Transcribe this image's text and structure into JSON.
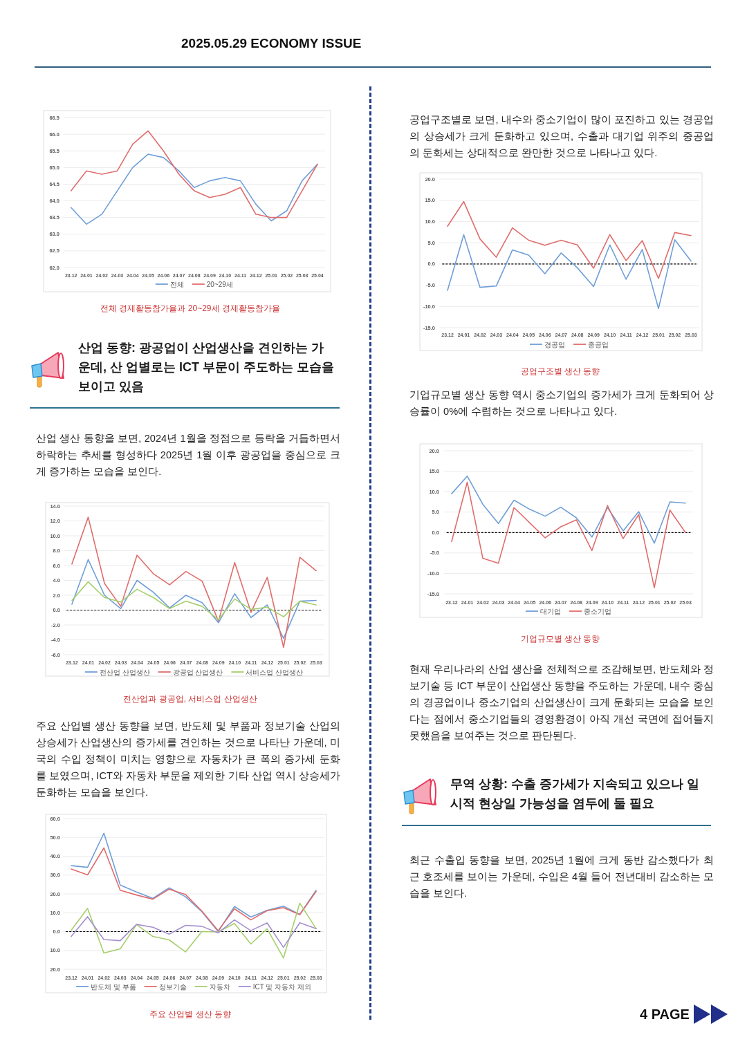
{
  "chart_data": [
    {
      "type": "other",
      "title": "2025.05.29 ECONOMY ISSUE"
    },
    {
      "type": "line",
      "categories": [
        "23.12",
        "24.01",
        "24.02",
        "24.03",
        "24.04",
        "24.05",
        "24.06",
        "24.07",
        "24.08",
        "24.09",
        "24.10",
        "24.11",
        "24.12",
        "25.01",
        "25.02",
        "25.03",
        "25.04"
      ],
      "series": [
        {
          "name": "전체",
          "color": "#6f9fd8",
          "values": [
            63.8,
            63.3,
            63.6,
            64.3,
            65.0,
            65.4,
            65.3,
            64.9,
            64.4,
            64.6,
            64.7,
            64.6,
            63.9,
            63.4,
            63.7,
            64.6,
            65.1
          ]
        },
        {
          "name": "20~29세",
          "color": "#e06c6c",
          "values": [
            64.3,
            64.9,
            64.8,
            64.9,
            65.7,
            66.1,
            65.5,
            64.8,
            64.3,
            64.1,
            64.2,
            64.4,
            63.6,
            63.5,
            63.5,
            64.3,
            65.1
          ]
        }
      ],
      "ylim": [
        62,
        66.5
      ],
      "yticks": [
        {
          "value": 62,
          "label": "62.0"
        },
        {
          "value": 62.5,
          "label": "62.5"
        },
        {
          "value": 63,
          "label": "63.0"
        },
        {
          "value": 63.5,
          "label": "63.5"
        },
        {
          "value": 64,
          "label": "64.0"
        },
        {
          "value": 64.5,
          "label": "64.5"
        },
        {
          "value": 65,
          "label": "65.0"
        },
        {
          "value": 65.5,
          "label": "65.5"
        },
        {
          "value": 66,
          "label": "66.0"
        },
        {
          "value": 66.5,
          "label": "66.5"
        }
      ],
      "grid": "y",
      "legend": "bottom",
      "annotations": [
        "전체 경제활동참가율과 20~29세 경제활동참가율"
      ]
    },
    {
      "type": "other",
      "title": "산업 동향: 광공업이 산업생산을 견인하는 가운데, 산 업별로는 ICT 부문이 주도하는 모습을 보이고 있음",
      "annotations": [
        "산업 생산 동향을 보면, 2024년 1월을 정점으로 등락을 거듭하면서 하락하는 추세를 형성하다 2025년 1월 이후 광공업을 중심으로 크게 증가하는 모습을 보인다."
      ]
    },
    {
      "type": "line",
      "categories": [
        "23.12",
        "24.01",
        "24.02",
        "24.03",
        "24.04",
        "24.05",
        "24.06",
        "24.07",
        "24.08",
        "24.09",
        "24.10",
        "24.11",
        "24.12",
        "25.01",
        "25.02",
        "25.03"
      ],
      "series": [
        {
          "name": "전산업 산업생산",
          "color": "#6f9fd8",
          "values": [
            0.8,
            6.8,
            2.0,
            0.2,
            4.0,
            2.4,
            0.3,
            2.0,
            1.0,
            -1.7,
            2.2,
            -1.0,
            0.7,
            -3.8,
            1.2,
            1.3
          ]
        },
        {
          "name": "광공업 산업생산",
          "color": "#e06c6c",
          "values": [
            6.2,
            12.5,
            3.6,
            0.5,
            7.4,
            4.9,
            3.4,
            5.2,
            3.9,
            -1.5,
            6.4,
            -0.3,
            4.4,
            -5.0,
            7.1,
            5.3
          ]
        },
        {
          "name": "서비스업 산업생산",
          "color": "#a5cf6a",
          "values": [
            1.3,
            3.8,
            1.7,
            1.1,
            2.8,
            1.7,
            0.2,
            1.2,
            0.5,
            -1.3,
            1.5,
            0.1,
            0.4,
            -0.9,
            1.2,
            0.7
          ]
        }
      ],
      "ylim": [
        -6,
        14
      ],
      "yticks": [
        {
          "value": -6,
          "label": "-6.0"
        },
        {
          "value": -4,
          "label": "-4.0"
        },
        {
          "value": -2,
          "label": "-2.0"
        },
        {
          "value": 0,
          "label": "0.0"
        },
        {
          "value": 2,
          "label": "2.0"
        },
        {
          "value": 4,
          "label": "4.0"
        },
        {
          "value": 6,
          "label": "6.0"
        },
        {
          "value": 8,
          "label": "8.0"
        },
        {
          "value": 10,
          "label": "10.0"
        },
        {
          "value": 12,
          "label": "12.0"
        },
        {
          "value": 14,
          "label": "14.0"
        }
      ],
      "grid": "y",
      "legend": "bottom",
      "ref_lines": [
        {
          "axis": "y",
          "value": 0,
          "color": "#000000",
          "line_style": "dashed"
        }
      ],
      "annotations": [
        "전산업과 광공업, 서비스업 산업생산"
      ]
    },
    {
      "type": "other",
      "annotations": [
        "주요 산업별 생산 동향을 보면, 반도체 및 부품과 정보기술 산업의 상승세가 산업생산의 증가세를 견인하는 것으로 나타난 가운데, 미국의 수입 정책이 미치는 영향으로 자동차가 큰 폭의 증가세 둔화를 보였으며, ICT와 자동차 부문을 제외한 기타 산업 역시 상승세가 둔화하는 모습을 보인다."
      ]
    },
    {
      "type": "line",
      "categories": [
        "23.12",
        "24.01",
        "24.02",
        "24.03",
        "24.04",
        "24.05",
        "24.06",
        "24.07",
        "24.08",
        "24.09",
        "24.10",
        "24.11",
        "24.12",
        "25.01",
        "25.02",
        "25.03"
      ],
      "series": [
        {
          "name": "반도체 및 부품",
          "color": "#6f9fd8",
          "values": [
            35.0,
            34.1,
            52.2,
            24.7,
            21.0,
            17.6,
            23.2,
            18.5,
            10.6,
            0.0,
            13.3,
            7.7,
            11.3,
            13.5,
            9.1,
            21.9
          ]
        },
        {
          "name": "정보기술",
          "color": "#e06c6c",
          "values": [
            33.2,
            30.1,
            44.4,
            21.9,
            19.4,
            17.2,
            22.5,
            19.7,
            10.9,
            0.5,
            12.1,
            6.2,
            11.1,
            12.7,
            9.0,
            21.3
          ]
        },
        {
          "name": "자동차",
          "color": "#a5cf6a",
          "values": [
            0.7,
            12.3,
            -11.4,
            -9.2,
            3.7,
            -2.6,
            -4.4,
            -10.8,
            0.0,
            -0.2,
            4.3,
            -6.6,
            1.4,
            -14.0,
            15.1,
            1.6
          ]
        },
        {
          "name": "ICT 및 자동차 제외",
          "color": "#a58fd0",
          "values": [
            -2.6,
            7.9,
            -4.2,
            -4.8,
            3.8,
            2.3,
            -1.4,
            3.3,
            2.8,
            -0.7,
            6.2,
            0.5,
            4.6,
            -8.4,
            4.7,
            1.6
          ]
        }
      ],
      "ylim": [
        -20,
        60
      ],
      "yticks": [
        {
          "value": -20,
          "label": "20.0"
        },
        {
          "value": -10,
          "label": "10.0"
        },
        {
          "value": 0,
          "label": "0.0"
        },
        {
          "value": 10,
          "label": "10.0"
        },
        {
          "value": 20,
          "label": "20.0"
        },
        {
          "value": 30,
          "label": "30.0"
        },
        {
          "value": 40,
          "label": "40.0"
        },
        {
          "value": 50,
          "label": "50.0"
        },
        {
          "value": 60,
          "label": "60.0"
        }
      ],
      "grid": "y",
      "legend": "bottom",
      "ref_lines": [
        {
          "axis": "y",
          "value": 0,
          "color": "#000000",
          "line_style": "dashed"
        }
      ],
      "annotations": [
        "주요 산업별 생산 동향"
      ]
    },
    {
      "type": "other",
      "annotations": [
        "공업구조별로 보면, 내수와 중소기업이 많이 포진하고 있는 경공업의 상승세가 크게 둔화하고 있으며, 수출과 대기업 위주의 중공업의 둔화세는 상대적으로 완만한 것으로 나타나고 있다."
      ]
    },
    {
      "type": "line",
      "categories": [
        "23.12",
        "24.01",
        "24.02",
        "24.03",
        "24.04",
        "24.05",
        "24.06",
        "24.07",
        "24.08",
        "24.09",
        "24.10",
        "24.11",
        "24.12",
        "25.01",
        "25.02",
        "25.03"
      ],
      "series": [
        {
          "name": "경공업",
          "color": "#6f9fd8",
          "values": [
            -6.2,
            6.9,
            -5.5,
            -5.2,
            3.3,
            2.1,
            -2.3,
            2.6,
            -0.9,
            -5.3,
            4.5,
            -3.6,
            3.4,
            -10.5,
            5.7,
            0.7
          ]
        },
        {
          "name": "중공업",
          "color": "#e06c6c",
          "values": [
            8.9,
            14.7,
            5.9,
            1.6,
            8.5,
            5.6,
            4.4,
            5.6,
            4.5,
            -1.0,
            6.9,
            0.8,
            5.5,
            -3.4,
            7.4,
            6.7
          ]
        }
      ],
      "ylim": [
        -15,
        20
      ],
      "yticks": [
        {
          "value": -15,
          "label": "-15.0"
        },
        {
          "value": -10,
          "label": "-10.0"
        },
        {
          "value": -5,
          "label": "-5.0"
        },
        {
          "value": 0,
          "label": "0.0"
        },
        {
          "value": 5,
          "label": "5.0"
        },
        {
          "value": 10,
          "label": "10.0"
        },
        {
          "value": 15,
          "label": "15.0"
        },
        {
          "value": 20,
          "label": "20.0"
        }
      ],
      "grid": "y",
      "legend": "bottom",
      "ref_lines": [
        {
          "axis": "y",
          "value": 0,
          "color": "#000000",
          "line_style": "dashed"
        }
      ],
      "annotations": [
        "공업구조별 생산 동향"
      ]
    },
    {
      "type": "other",
      "annotations": [
        "기업규모별 생산 동향 역시 중소기업의 증가세가 크게 둔화되어 상승률이 0%에 수렴하는 것으로 나타나고 있다."
      ]
    },
    {
      "type": "line",
      "categories": [
        "23.12",
        "24.01",
        "24.02",
        "24.03",
        "24.04",
        "24.05",
        "24.06",
        "24.07",
        "24.08",
        "24.09",
        "24.10",
        "24.11",
        "24.12",
        "25.01",
        "25.02",
        "25.03"
      ],
      "series": [
        {
          "name": "대기업",
          "color": "#6f9fd8",
          "values": [
            9.5,
            13.8,
            6.9,
            2.2,
            7.9,
            5.7,
            4.0,
            6.2,
            3.6,
            -1.1,
            6.1,
            0.4,
            5.1,
            -2.6,
            7.5,
            7.2
          ]
        },
        {
          "name": "중소기업",
          "color": "#e06c6c",
          "values": [
            -2.2,
            12.3,
            -6.3,
            -7.5,
            6.1,
            2.4,
            -1.3,
            1.4,
            3.1,
            -4.4,
            6.6,
            -1.5,
            4.4,
            -13.5,
            5.5,
            0.0
          ]
        }
      ],
      "ylim": [
        -15,
        20
      ],
      "yticks": [
        {
          "value": -15,
          "label": "-15.0"
        },
        {
          "value": -10,
          "label": "-10.0"
        },
        {
          "value": -5,
          "label": "-5.0"
        },
        {
          "value": 0,
          "label": "0.0"
        },
        {
          "value": 5,
          "label": "5.0"
        },
        {
          "value": 10,
          "label": "10.0"
        },
        {
          "value": 15,
          "label": "15.0"
        },
        {
          "value": 20,
          "label": "20.0"
        }
      ],
      "grid": "y",
      "legend": "bottom",
      "ref_lines": [
        {
          "axis": "y",
          "value": 0,
          "color": "#000000",
          "line_style": "dashed"
        }
      ],
      "annotations": [
        "기업규모별 생산 동향"
      ]
    },
    {
      "type": "other",
      "annotations": [
        "현재 우리나라의 산업 생산을 전체적으로 조감해보면, 반도체와 정보기술 등 ICT 부문이 산업생산 동향을 주도하는 가운데, 내수 중심의 경공업이나 중소기업의 산업생산이 크게 둔화되는 모습을 보인다는 점에서 중소기업들의 경영환경이 아직 개선 국면에 접어들지 못했음을 보여주는 것으로 판단된다."
      ]
    },
    {
      "type": "other",
      "title": "무역 상황: 수출 증가세가 지속되고 있으나 일시적 현상일 가능성을 염두에 둘 필요",
      "annotations": [
        "최근 수출입 동향을 보면, 2025년 1월에 크게 동반 감소했다가 최근 호조세를 보이는 가운데, 수입은 4월 들어 전년대비 감소하는 모습을 보인다."
      ]
    },
    {
      "type": "other",
      "annotations": [
        "4 PAGE"
      ]
    }
  ]
}
